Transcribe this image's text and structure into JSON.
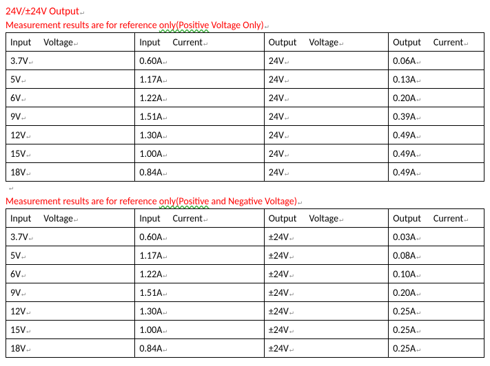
{
  "title": "24V/±24V Output",
  "subtitle1_prefix": "Measurement results are for reference ",
  "subtitle1_squiggle": "only(Positive",
  "subtitle1_suffix": " Voltage Only)",
  "subtitle2_prefix": "Measurement results are for reference ",
  "subtitle2_squiggle": "only(Positive",
  "subtitle2_suffix": " and Negative Voltage)",
  "headers": {
    "c1a": "Input",
    "c1b": "Voltage",
    "c2a": "Input",
    "c2b": "Current",
    "c3a": "Output",
    "c3b": "Voltage",
    "c4a": "Output",
    "c4b": "Current"
  },
  "table1": {
    "columns": [
      "Input   Voltage",
      "Input    Current",
      "Output    Voltage",
      "Output    Current"
    ],
    "rows": [
      [
        "3.7V",
        "0.60A",
        "24V",
        "0.06A"
      ],
      [
        "5V",
        "1.17A",
        "24V",
        "0.13A"
      ],
      [
        "6V",
        "1.22A",
        "24V",
        "0.20A"
      ],
      [
        "9V",
        "1.51A",
        "24V",
        "0.39A"
      ],
      [
        "12V",
        "1.30A",
        "24V",
        "0.49A"
      ],
      [
        "15V",
        "1.00A",
        "24V",
        "0.49A"
      ],
      [
        "18V",
        "0.84A",
        "24V",
        "0.49A"
      ]
    ]
  },
  "table2": {
    "columns": [
      "Input   Voltage",
      "Input    Current",
      "Output    Voltage",
      "Output    Current"
    ],
    "rows": [
      [
        "3.7V",
        "0.60A",
        "±24V",
        "0.03A"
      ],
      [
        "5V",
        "1.17A",
        "±24V",
        "0.08A"
      ],
      [
        "6V",
        "1.22A",
        "±24V",
        "0.10A"
      ],
      [
        "9V",
        "1.51A",
        "±24V",
        "0.20A"
      ],
      [
        "12V",
        "1.30A",
        "±24V",
        "0.25A"
      ],
      [
        "15V",
        "1.00A",
        "±24V",
        "0.25A"
      ],
      [
        "18V",
        "0.84A",
        "±24V",
        "0.25A"
      ]
    ]
  },
  "colors": {
    "title": "#ff0000",
    "border": "#000000",
    "text": "#000000",
    "return_mark": "#888888",
    "squiggle": "#33aa33",
    "background": "#ffffff"
  },
  "col_widths_pct": [
    27,
    27,
    26,
    20
  ],
  "font_family": "Calibri",
  "font_size_pt": 11,
  "return_glyph": "↵"
}
